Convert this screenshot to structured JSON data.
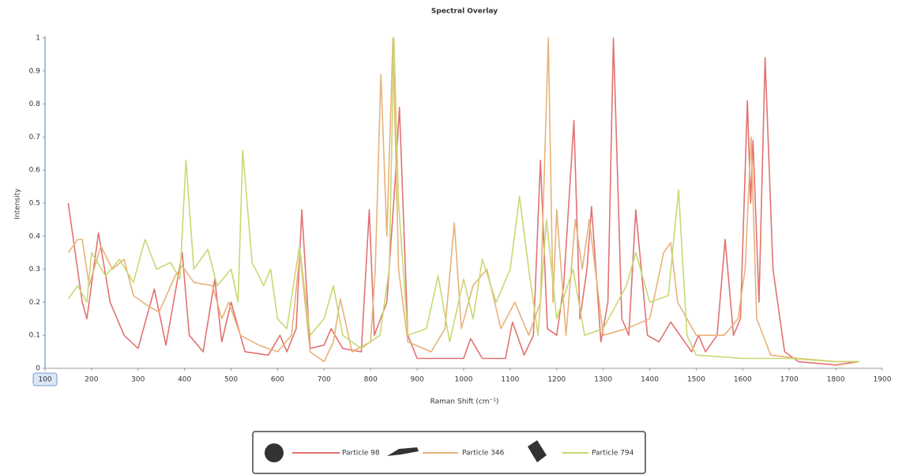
{
  "chart_data": {
    "type": "line",
    "title": "Spectral Overlay",
    "x_label": "Raman Shift (cm⁻¹)",
    "y_label": "Intensity",
    "xlim": [
      100,
      1900
    ],
    "xticks": [
      100,
      200,
      300,
      400,
      500,
      600,
      700,
      800,
      900,
      1000,
      1100,
      1200,
      1300,
      1400,
      1500,
      1600,
      1700,
      1800,
      1900
    ],
    "ylim": [
      0,
      1
    ],
    "yticks": [
      0,
      0.1,
      0.2,
      0.3,
      0.4,
      0.5,
      0.6,
      0.7,
      0.8,
      0.9,
      1
    ],
    "series": [
      {
        "name": "Particle 98",
        "color": "#e27272",
        "x": [
          150,
          180,
          190,
          215,
          240,
          270,
          300,
          335,
          360,
          395,
          410,
          440,
          465,
          480,
          500,
          530,
          580,
          605,
          620,
          640,
          652,
          670,
          700,
          715,
          740,
          780,
          797,
          808,
          835,
          852,
          862,
          880,
          900,
          1000,
          1015,
          1040,
          1090,
          1105,
          1130,
          1150,
          1165,
          1180,
          1200,
          1215,
          1237,
          1250,
          1265,
          1275,
          1295,
          1310,
          1322,
          1340,
          1355,
          1370,
          1395,
          1420,
          1445,
          1490,
          1505,
          1520,
          1545,
          1562,
          1580,
          1595,
          1610,
          1617,
          1622,
          1635,
          1648,
          1665,
          1690,
          1720,
          1800,
          1850
        ],
        "values": [
          0.5,
          0.2,
          0.15,
          0.41,
          0.2,
          0.1,
          0.06,
          0.24,
          0.07,
          0.35,
          0.1,
          0.05,
          0.27,
          0.08,
          0.2,
          0.05,
          0.04,
          0.1,
          0.05,
          0.12,
          0.48,
          0.06,
          0.07,
          0.12,
          0.06,
          0.05,
          0.48,
          0.1,
          0.2,
          0.55,
          0.79,
          0.1,
          0.03,
          0.03,
          0.09,
          0.03,
          0.03,
          0.14,
          0.04,
          0.1,
          0.63,
          0.12,
          0.1,
          0.25,
          0.75,
          0.15,
          0.3,
          0.49,
          0.08,
          0.2,
          1.0,
          0.15,
          0.1,
          0.48,
          0.1,
          0.08,
          0.14,
          0.05,
          0.1,
          0.05,
          0.1,
          0.39,
          0.1,
          0.15,
          0.81,
          0.5,
          0.69,
          0.2,
          0.94,
          0.3,
          0.05,
          0.02,
          0.01,
          0.02
        ]
      },
      {
        "name": "Particle 346",
        "color": "#e8b27a",
        "x": [
          150,
          170,
          180,
          195,
          220,
          245,
          270,
          290,
          320,
          345,
          380,
          395,
          420,
          460,
          480,
          495,
          520,
          560,
          600,
          630,
          648,
          670,
          700,
          720,
          735,
          760,
          800,
          810,
          822,
          835,
          848,
          860,
          880,
          930,
          960,
          980,
          995,
          1020,
          1050,
          1080,
          1110,
          1140,
          1165,
          1182,
          1192,
          1200,
          1220,
          1240,
          1255,
          1270,
          1300,
          1350,
          1400,
          1430,
          1445,
          1460,
          1500,
          1560,
          1590,
          1605,
          1618,
          1630,
          1660,
          1720,
          1800,
          1850
        ],
        "values": [
          0.35,
          0.39,
          0.39,
          0.25,
          0.37,
          0.3,
          0.33,
          0.22,
          0.19,
          0.17,
          0.28,
          0.31,
          0.26,
          0.25,
          0.15,
          0.2,
          0.1,
          0.07,
          0.05,
          0.1,
          0.35,
          0.05,
          0.02,
          0.08,
          0.21,
          0.05,
          0.08,
          0.3,
          0.89,
          0.4,
          1.0,
          0.3,
          0.08,
          0.05,
          0.12,
          0.44,
          0.12,
          0.25,
          0.3,
          0.12,
          0.2,
          0.1,
          0.2,
          1.0,
          0.2,
          0.48,
          0.1,
          0.45,
          0.3,
          0.45,
          0.1,
          0.12,
          0.15,
          0.35,
          0.38,
          0.2,
          0.1,
          0.1,
          0.15,
          0.3,
          0.7,
          0.15,
          0.04,
          0.03,
          0.02,
          0.02
        ]
      },
      {
        "name": "Particle 794",
        "color": "#c9d873",
        "x": [
          150,
          170,
          190,
          200,
          230,
          260,
          290,
          315,
          340,
          370,
          390,
          403,
          420,
          450,
          470,
          500,
          515,
          525,
          545,
          570,
          585,
          600,
          620,
          647,
          670,
          700,
          720,
          740,
          780,
          820,
          840,
          850,
          860,
          880,
          920,
          945,
          970,
          1000,
          1020,
          1040,
          1070,
          1100,
          1120,
          1140,
          1160,
          1178,
          1200,
          1235,
          1260,
          1300,
          1350,
          1370,
          1400,
          1440,
          1462,
          1480,
          1500,
          1600,
          1700,
          1800,
          1850
        ],
        "values": [
          0.21,
          0.25,
          0.2,
          0.35,
          0.28,
          0.33,
          0.26,
          0.39,
          0.3,
          0.32,
          0.27,
          0.63,
          0.3,
          0.36,
          0.25,
          0.3,
          0.2,
          0.66,
          0.32,
          0.25,
          0.3,
          0.15,
          0.12,
          0.37,
          0.1,
          0.15,
          0.25,
          0.1,
          0.06,
          0.1,
          0.3,
          1.0,
          0.5,
          0.1,
          0.12,
          0.28,
          0.08,
          0.27,
          0.15,
          0.33,
          0.2,
          0.3,
          0.52,
          0.3,
          0.1,
          0.45,
          0.15,
          0.3,
          0.1,
          0.12,
          0.25,
          0.35,
          0.2,
          0.22,
          0.54,
          0.1,
          0.04,
          0.03,
          0.03,
          0.02,
          0.02
        ]
      }
    ]
  }
}
